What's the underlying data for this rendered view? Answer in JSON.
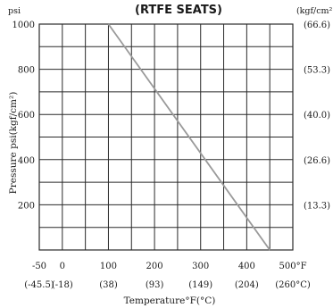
{
  "chart_data": {
    "type": "line",
    "title": "(RTFE SEATS)",
    "ylabel": "Pressure psi(kgf/cm²)",
    "xlabel": "Temperature°F(°C)",
    "y_unit_left": "psi",
    "y_unit_right": "(kgf/cm²)",
    "xlim": [
      -50,
      500
    ],
    "ylim": [
      0,
      1000
    ],
    "grid": true,
    "x_ticks": [
      {
        "value": -50,
        "label_f": "-50",
        "label_c": "(-45.5)"
      },
      {
        "value": 0,
        "label_f": "0",
        "label_c": "(-18)"
      },
      {
        "value": 100,
        "label_f": "100",
        "label_c": "(38)"
      },
      {
        "value": 200,
        "label_f": "200",
        "label_c": "(93)"
      },
      {
        "value": 300,
        "label_f": "300",
        "label_c": "(149)"
      },
      {
        "value": 400,
        "label_f": "400",
        "label_c": "(204)"
      },
      {
        "value": 500,
        "label_f": "500°F",
        "label_c": "(260°C)"
      }
    ],
    "y_ticks_left": [
      {
        "value": 1000,
        "label": "1000"
      },
      {
        "value": 800,
        "label": "800"
      },
      {
        "value": 600,
        "label": "600"
      },
      {
        "value": 400,
        "label": "400"
      },
      {
        "value": 200,
        "label": "200"
      }
    ],
    "y_ticks_right": [
      {
        "value": 1000,
        "label": "(66.6)"
      },
      {
        "value": 800,
        "label": "(53.3)"
      },
      {
        "value": 600,
        "label": "(40.0)"
      },
      {
        "value": 400,
        "label": "(26.6)"
      },
      {
        "value": 200,
        "label": "(13.3)"
      }
    ],
    "series": [
      {
        "x": [
          100,
          450
        ],
        "y": [
          1000,
          0
        ]
      }
    ],
    "line_color": "#9a9a9a",
    "grid_color": "#2a2a2a"
  }
}
